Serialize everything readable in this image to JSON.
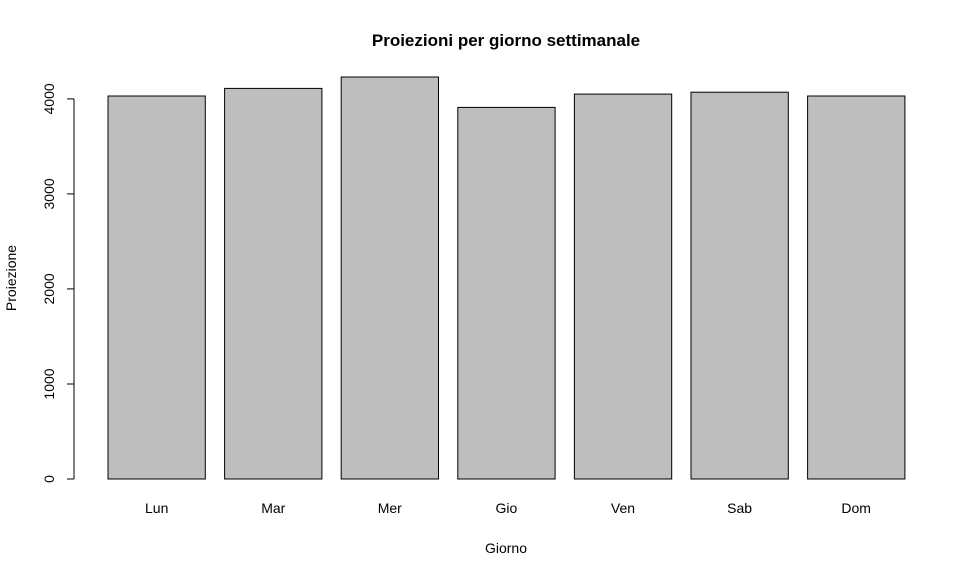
{
  "chart_data": {
    "type": "bar",
    "title": "Proiezioni per giorno settimanale",
    "xlabel": "Giorno",
    "ylabel": "Proiezione",
    "categories": [
      "Lun",
      "Mar",
      "Mer",
      "Gio",
      "Ven",
      "Sab",
      "Dom"
    ],
    "values": [
      4030,
      4110,
      4230,
      3910,
      4050,
      4070,
      4030
    ],
    "ylim": [
      0,
      4230
    ],
    "yticks": [
      0,
      1000,
      2000,
      3000,
      4000
    ],
    "ytick_labels": [
      "0",
      "1000",
      "2000",
      "3000",
      "4000"
    ],
    "grid": false,
    "bar_color": "#bebebe",
    "border_color": "#000000"
  }
}
